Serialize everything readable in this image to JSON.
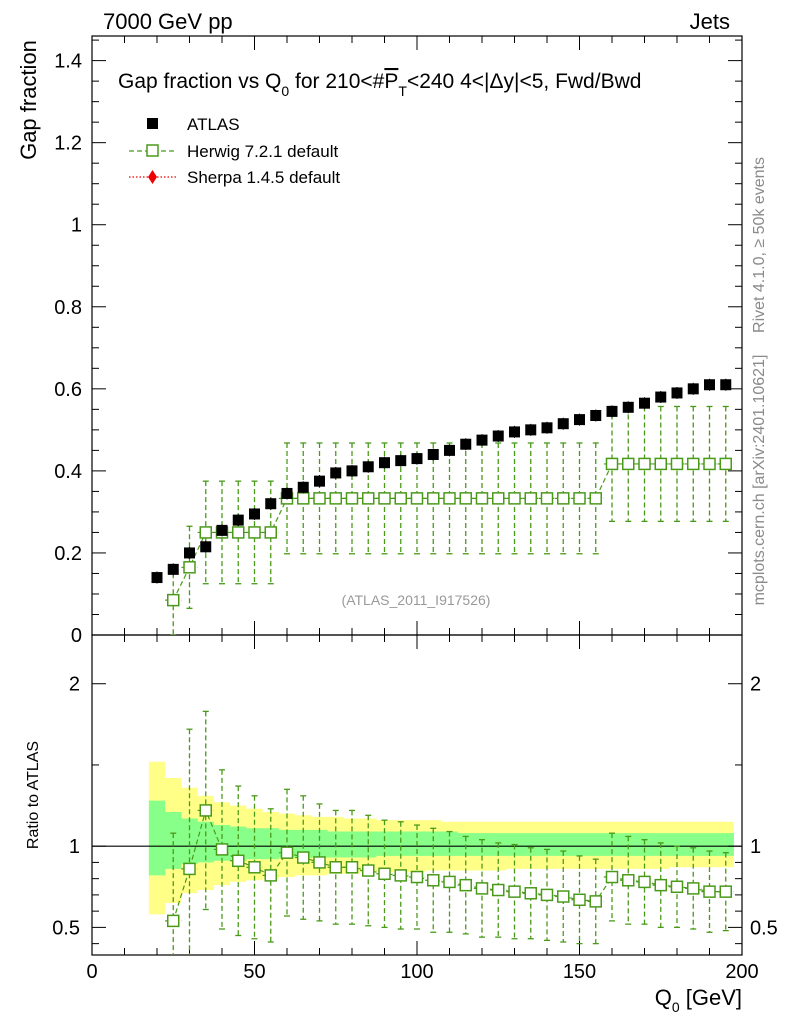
{
  "header": {
    "left": "7000 GeV pp",
    "right": "Jets"
  },
  "side_labels": {
    "rivet": "Rivet 4.1.0, ≥ 50k events",
    "mcplots": "mcplots.cern.ch [arXiv:2401.10621]"
  },
  "title": "Gap fraction vs Q0 for 210<#PT<240  4<|Δy|<5, Fwd/Bwd",
  "title_parts": {
    "t1": "Gap fraction vs Q",
    "t1_sub": "0",
    "t2": " for 210<#",
    "t2_over": "P",
    "t2_sub": "T",
    "t3": "<240  4<|Δy|<5, Fwd/Bwd"
  },
  "legend": [
    {
      "label": "ATLAS"
    },
    {
      "label": "Herwig 7.2.1 default"
    },
    {
      "label": "Sherpa 1.4.5 default"
    }
  ],
  "analysis_tag": "(ATLAS_2011_I917526)",
  "axis_labels": {
    "y_top": "Gap fraction",
    "y_bottom": "Ratio to ATLAS",
    "x": "Q",
    "x_sub": "0",
    "x_unit": " [GeV]"
  },
  "colors": {
    "data": "#000000",
    "herwig": "#4a9a1a",
    "sherpa": "#ee0000",
    "band_outer": "#ffff88",
    "band_inner": "#88ff88"
  },
  "chart_data": {
    "type": "scatter",
    "x": [
      20,
      25,
      30,
      35,
      40,
      45,
      50,
      55,
      60,
      65,
      70,
      75,
      80,
      85,
      90,
      95,
      100,
      105,
      110,
      115,
      120,
      125,
      130,
      135,
      140,
      145,
      150,
      155,
      160,
      165,
      170,
      175,
      180,
      185,
      190,
      195
    ],
    "xlim": [
      0,
      200
    ],
    "x_ticks": [
      "0",
      "50",
      "100",
      "150",
      "200"
    ],
    "top": {
      "ylim": [
        0,
        1.46
      ],
      "y_ticks": [
        "0",
        "0.2",
        "0.4",
        "0.6",
        "0.8",
        "1",
        "1.2",
        "1.4"
      ],
      "series": [
        {
          "name": "ATLAS",
          "values": [
            0.14,
            0.16,
            0.2,
            0.215,
            0.255,
            0.28,
            0.295,
            0.32,
            0.345,
            0.36,
            0.375,
            0.395,
            0.4,
            0.41,
            0.42,
            0.425,
            0.43,
            0.44,
            0.45,
            0.465,
            0.475,
            0.485,
            0.495,
            0.5,
            0.505,
            0.515,
            0.525,
            0.535,
            0.545,
            0.555,
            0.565,
            0.58,
            0.59,
            0.6,
            0.61,
            0.61
          ]
        },
        {
          "name": "Herwig 7.2.1 default",
          "x": [
            25,
            30,
            35,
            40,
            45,
            50,
            55,
            60,
            65,
            70,
            75,
            80,
            85,
            90,
            95,
            100,
            105,
            110,
            115,
            120,
            125,
            130,
            135,
            140,
            145,
            150,
            155,
            160,
            165,
            170,
            175,
            180,
            185,
            190,
            195
          ],
          "values": [
            0.085,
            0.165,
            0.25,
            0.25,
            0.25,
            0.25,
            0.25,
            0.333,
            0.333,
            0.333,
            0.333,
            0.333,
            0.333,
            0.333,
            0.333,
            0.333,
            0.333,
            0.333,
            0.333,
            0.333,
            0.333,
            0.333,
            0.333,
            0.333,
            0.333,
            0.333,
            0.333,
            0.417,
            0.417,
            0.417,
            0.417,
            0.417,
            0.417,
            0.417,
            0.417
          ],
          "err_low": [
            0.085,
            0.1,
            0.125,
            0.125,
            0.125,
            0.125,
            0.125,
            0.135,
            0.135,
            0.135,
            0.135,
            0.135,
            0.135,
            0.135,
            0.135,
            0.135,
            0.135,
            0.135,
            0.135,
            0.135,
            0.135,
            0.135,
            0.135,
            0.135,
            0.135,
            0.135,
            0.135,
            0.14,
            0.14,
            0.14,
            0.14,
            0.14,
            0.14,
            0.14,
            0.14
          ],
          "err_high": [
            0.085,
            0.1,
            0.125,
            0.125,
            0.125,
            0.125,
            0.125,
            0.135,
            0.135,
            0.135,
            0.135,
            0.135,
            0.135,
            0.135,
            0.135,
            0.135,
            0.135,
            0.135,
            0.135,
            0.135,
            0.135,
            0.135,
            0.135,
            0.135,
            0.135,
            0.135,
            0.135,
            0.14,
            0.14,
            0.14,
            0.14,
            0.14,
            0.14,
            0.14,
            0.14
          ]
        }
      ]
    },
    "ratio": {
      "ylim": [
        0.33,
        2.3
      ],
      "y_ticks": [
        "0.5",
        "1",
        "2"
      ],
      "reference": 1,
      "band_outer": {
        "low": [
          0.58,
          0.65,
          0.71,
          0.73,
          0.76,
          0.78,
          0.79,
          0.8,
          0.81,
          0.82,
          0.82,
          0.83,
          0.83,
          0.84,
          0.84,
          0.84,
          0.84,
          0.85,
          0.85,
          0.85,
          0.85,
          0.85,
          0.86,
          0.86,
          0.86,
          0.86,
          0.86,
          0.86,
          0.86,
          0.86,
          0.86,
          0.86,
          0.87,
          0.87,
          0.87,
          0.87
        ],
        "high": [
          1.52,
          1.42,
          1.36,
          1.31,
          1.27,
          1.25,
          1.23,
          1.21,
          1.2,
          1.19,
          1.18,
          1.18,
          1.17,
          1.17,
          1.16,
          1.16,
          1.16,
          1.16,
          1.15,
          1.15,
          1.15,
          1.15,
          1.15,
          1.15,
          1.15,
          1.15,
          1.15,
          1.15,
          1.15,
          1.15,
          1.15,
          1.15,
          1.15,
          1.15,
          1.15,
          1.15
        ]
      },
      "band_inner": {
        "low": [
          0.82,
          0.86,
          0.89,
          0.9,
          0.91,
          0.91,
          0.92,
          0.92,
          0.93,
          0.93,
          0.93,
          0.93,
          0.93,
          0.93,
          0.94,
          0.94,
          0.94,
          0.94,
          0.94,
          0.94,
          0.94,
          0.94,
          0.94,
          0.94,
          0.94,
          0.94,
          0.94,
          0.94,
          0.94,
          0.94,
          0.94,
          0.94,
          0.94,
          0.94,
          0.94,
          0.94
        ],
        "high": [
          1.28,
          1.21,
          1.17,
          1.15,
          1.13,
          1.12,
          1.11,
          1.11,
          1.1,
          1.1,
          1.1,
          1.09,
          1.09,
          1.09,
          1.09,
          1.09,
          1.09,
          1.09,
          1.09,
          1.08,
          1.08,
          1.08,
          1.08,
          1.08,
          1.08,
          1.08,
          1.08,
          1.08,
          1.08,
          1.08,
          1.08,
          1.08,
          1.08,
          1.08,
          1.08,
          1.08
        ]
      },
      "series": [
        {
          "name": "Herwig 7.2.1 default",
          "x": [
            25,
            30,
            35,
            40,
            45,
            50,
            55,
            60,
            65,
            70,
            75,
            80,
            85,
            90,
            95,
            100,
            105,
            110,
            115,
            120,
            125,
            130,
            135,
            140,
            145,
            150,
            155,
            160,
            165,
            170,
            175,
            180,
            185,
            190,
            195
          ],
          "values": [
            0.54,
            0.86,
            1.22,
            0.98,
            0.91,
            0.87,
            0.82,
            0.96,
            0.93,
            0.9,
            0.87,
            0.87,
            0.85,
            0.83,
            0.82,
            0.81,
            0.79,
            0.78,
            0.76,
            0.74,
            0.73,
            0.72,
            0.71,
            0.7,
            0.69,
            0.67,
            0.66,
            0.81,
            0.79,
            0.78,
            0.76,
            0.75,
            0.74,
            0.72,
            0.72
          ],
          "err_low": [
            0.54,
            0.86,
            0.61,
            0.49,
            0.46,
            0.44,
            0.41,
            0.39,
            0.38,
            0.36,
            0.35,
            0.35,
            0.34,
            0.33,
            0.33,
            0.32,
            0.32,
            0.31,
            0.3,
            0.3,
            0.29,
            0.29,
            0.28,
            0.28,
            0.28,
            0.27,
            0.26,
            0.27,
            0.27,
            0.26,
            0.26,
            0.25,
            0.25,
            0.25,
            0.24
          ],
          "err_high": [
            0.54,
            0.86,
            0.61,
            0.49,
            0.46,
            0.44,
            0.41,
            0.39,
            0.38,
            0.36,
            0.35,
            0.35,
            0.34,
            0.33,
            0.33,
            0.32,
            0.32,
            0.31,
            0.3,
            0.3,
            0.29,
            0.29,
            0.28,
            0.28,
            0.28,
            0.27,
            0.26,
            0.27,
            0.27,
            0.26,
            0.26,
            0.25,
            0.25,
            0.25,
            0.24
          ]
        }
      ]
    }
  }
}
